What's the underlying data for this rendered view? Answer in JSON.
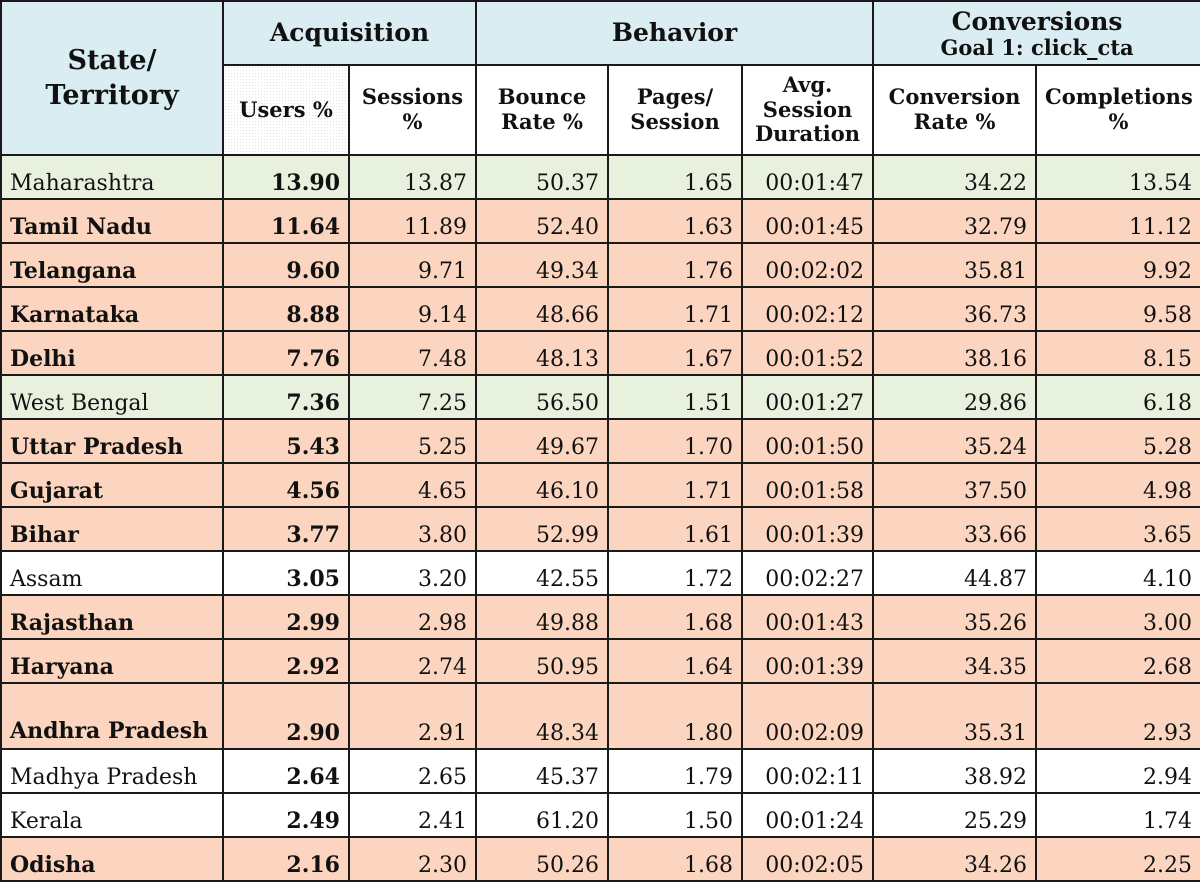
{
  "headers": {
    "state": "State/ Territory",
    "acquisition": "Acquisition",
    "behavior": "Behavior",
    "conversions": "Conversions",
    "goal": "Goal 1: click_cta",
    "users": "Users %",
    "sessions": "Sessions %",
    "bounce": "Bounce Rate %",
    "pages": "Pages/ Session",
    "duration": "Avg. Session Duration",
    "conv_rate": "Conversion Rate %",
    "completions": "Completions %"
  },
  "colors": {
    "header": "#d9edf3",
    "orange_row": "#fbd5bf",
    "green_row": "#e8f0de",
    "white_row": "#ffffff"
  },
  "rows": [
    {
      "state": "Maharashtra",
      "users": "13.90",
      "sessions": "13.87",
      "bounce": "50.37",
      "pages": "1.65",
      "duration": "00:01:47",
      "conv_rate": "34.22",
      "completions": "13.54",
      "highlight": "green"
    },
    {
      "state": "Tamil Nadu",
      "users": "11.64",
      "sessions": "11.89",
      "bounce": "52.40",
      "pages": "1.63",
      "duration": "00:01:45",
      "conv_rate": "32.79",
      "completions": "11.12",
      "highlight": "orange"
    },
    {
      "state": "Telangana",
      "users": "9.60",
      "sessions": "9.71",
      "bounce": "49.34",
      "pages": "1.76",
      "duration": "00:02:02",
      "conv_rate": "35.81",
      "completions": "9.92",
      "highlight": "orange"
    },
    {
      "state": "Karnataka",
      "users": "8.88",
      "sessions": "9.14",
      "bounce": "48.66",
      "pages": "1.71",
      "duration": "00:02:12",
      "conv_rate": "36.73",
      "completions": "9.58",
      "highlight": "orange"
    },
    {
      "state": "Delhi",
      "users": "7.76",
      "sessions": "7.48",
      "bounce": "48.13",
      "pages": "1.67",
      "duration": "00:01:52",
      "conv_rate": "38.16",
      "completions": "8.15",
      "highlight": "orange"
    },
    {
      "state": "West Bengal",
      "users": "7.36",
      "sessions": "7.25",
      "bounce": "56.50",
      "pages": "1.51",
      "duration": "00:01:27",
      "conv_rate": "29.86",
      "completions": "6.18",
      "highlight": "green"
    },
    {
      "state": "Uttar Pradesh",
      "users": "5.43",
      "sessions": "5.25",
      "bounce": "49.67",
      "pages": "1.70",
      "duration": "00:01:50",
      "conv_rate": "35.24",
      "completions": "5.28",
      "highlight": "orange"
    },
    {
      "state": "Gujarat",
      "users": "4.56",
      "sessions": "4.65",
      "bounce": "46.10",
      "pages": "1.71",
      "duration": "00:01:58",
      "conv_rate": "37.50",
      "completions": "4.98",
      "highlight": "orange"
    },
    {
      "state": "Bihar",
      "users": "3.77",
      "sessions": "3.80",
      "bounce": "52.99",
      "pages": "1.61",
      "duration": "00:01:39",
      "conv_rate": "33.66",
      "completions": "3.65",
      "highlight": "orange"
    },
    {
      "state": "Assam",
      "users": "3.05",
      "sessions": "3.20",
      "bounce": "42.55",
      "pages": "1.72",
      "duration": "00:02:27",
      "conv_rate": "44.87",
      "completions": "4.10",
      "highlight": "white"
    },
    {
      "state": "Rajasthan",
      "users": "2.99",
      "sessions": "2.98",
      "bounce": "49.88",
      "pages": "1.68",
      "duration": "00:01:43",
      "conv_rate": "35.26",
      "completions": "3.00",
      "highlight": "orange"
    },
    {
      "state": "Haryana",
      "users": "2.92",
      "sessions": "2.74",
      "bounce": "50.95",
      "pages": "1.64",
      "duration": "00:01:39",
      "conv_rate": "34.35",
      "completions": "2.68",
      "highlight": "orange"
    },
    {
      "state": "Andhra Pradesh",
      "users": "2.90",
      "sessions": "2.91",
      "bounce": "48.34",
      "pages": "1.80",
      "duration": "00:02:09",
      "conv_rate": "35.31",
      "completions": "2.93",
      "highlight": "orange",
      "wrap": true
    },
    {
      "state": "Madhya Pradesh",
      "users": "2.64",
      "sessions": "2.65",
      "bounce": "45.37",
      "pages": "1.79",
      "duration": "00:02:11",
      "conv_rate": "38.92",
      "completions": "2.94",
      "highlight": "white"
    },
    {
      "state": "Kerala",
      "users": "2.49",
      "sessions": "2.41",
      "bounce": "61.20",
      "pages": "1.50",
      "duration": "00:01:24",
      "conv_rate": "25.29",
      "completions": "1.74",
      "highlight": "white"
    },
    {
      "state": "Odisha",
      "users": "2.16",
      "sessions": "2.30",
      "bounce": "50.26",
      "pages": "1.68",
      "duration": "00:02:05",
      "conv_rate": "34.26",
      "completions": "2.25",
      "highlight": "orange"
    }
  ]
}
